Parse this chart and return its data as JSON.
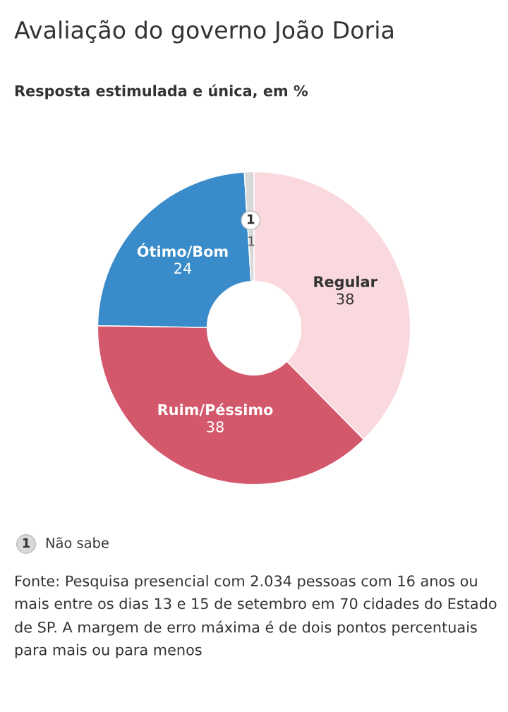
{
  "chart_data": {
    "type": "donut",
    "title": "Avaliação do governo João Doria",
    "subtitle": "Resposta estimulada e única, em %",
    "categories": [
      "Regular",
      "Ruim/Péssimo",
      "Ótimo/Bom",
      "Não sabe"
    ],
    "values": [
      38,
      38,
      24,
      1
    ],
    "colors": [
      "#fad9de",
      "#d4586c",
      "#3a8bc9",
      "#d9d9d9"
    ],
    "data_labels": true,
    "annotations": [
      "1",
      "Fonte: Pesquisa presencial com 2.034 pessoas com 16 anos ou mais entre os dias 13 e 15 de setembro em 70 cidades do Estado de SP. A margem de erro máxima é de dois pontos percentuais para mais ou para menos"
    ]
  }
}
